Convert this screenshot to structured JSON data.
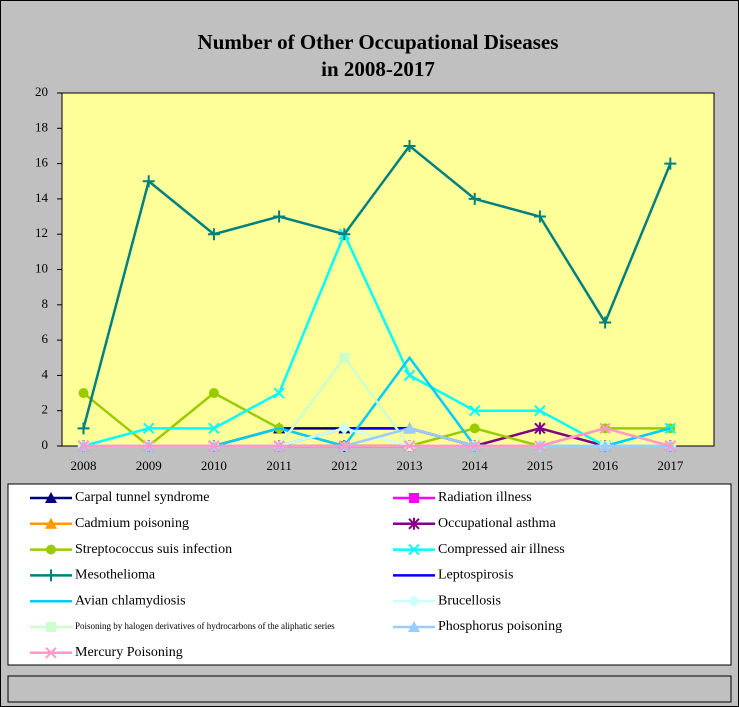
{
  "chart_data": {
    "type": "line",
    "title": [
      "Number of Other Occupational Diseases",
      "in 2008-2017"
    ],
    "categories": [
      "2008",
      "2009",
      "2010",
      "2011",
      "2012",
      "2013",
      "2014",
      "2015",
      "2016",
      "2017"
    ],
    "ylim": [
      0,
      20
    ],
    "yticks": [
      0,
      2,
      4,
      6,
      8,
      10,
      12,
      14,
      16,
      18,
      20
    ],
    "grid": false,
    "series": [
      {
        "name": "Carpal tunnel syndrome",
        "color": "#000080",
        "marker": "triangle",
        "values": [
          0,
          0,
          0,
          1,
          1,
          1,
          0,
          0,
          0,
          0
        ]
      },
      {
        "name": "Radiation illness",
        "color": "#FF00FF",
        "marker": "square",
        "values": [
          0,
          0,
          0,
          0,
          0,
          0,
          0,
          0,
          0,
          0
        ]
      },
      {
        "name": "Cadmium poisoning",
        "color": "#FF9900",
        "marker": "triangle",
        "values": [
          0,
          0,
          0,
          0,
          0,
          0,
          0,
          0,
          0,
          0
        ]
      },
      {
        "name": "Occupational asthma",
        "color": "#800080",
        "marker": "star",
        "values": [
          0,
          0,
          0,
          0,
          0,
          0,
          0,
          1,
          0,
          0
        ]
      },
      {
        "name": "Streptococcus suis infection",
        "color": "#99CC00",
        "marker": "circle",
        "values": [
          3,
          0,
          3,
          1,
          0,
          0,
          1,
          0,
          1,
          1
        ]
      },
      {
        "name": "Compressed air illness",
        "color": "#00FFFF",
        "marker": "x",
        "values": [
          0,
          1,
          1,
          3,
          12,
          4,
          2,
          2,
          0,
          1
        ]
      },
      {
        "name": "Mesothelioma",
        "color": "#008080",
        "marker": "plus",
        "values": [
          1,
          15,
          12,
          13,
          12,
          17,
          14,
          13,
          7,
          16
        ]
      },
      {
        "name": "Leptospirosis",
        "color": "#0000FF",
        "marker": "none",
        "values": [
          0,
          0,
          0,
          0,
          1,
          1,
          0,
          0,
          0,
          0
        ]
      },
      {
        "name": "Avian chlamydiosis",
        "color": "#00CCFF",
        "marker": "none",
        "values": [
          0,
          0,
          0,
          1,
          0,
          5,
          0,
          0,
          0,
          1
        ]
      },
      {
        "name": "Brucellosis",
        "color": "#CCFFFF",
        "marker": "diamond",
        "values": [
          0,
          0,
          0,
          0,
          1,
          0,
          0,
          0,
          0,
          0
        ]
      },
      {
        "name": "Poisoning by halogen derivatives of hydrocarbons of the aliphatic series",
        "color": "#CCFFCC",
        "marker": "square",
        "values": [
          0,
          0,
          0,
          0,
          5,
          0,
          0,
          0,
          0,
          0
        ]
      },
      {
        "name": "Phosphorus poisoning",
        "color": "#99CCFF",
        "marker": "triangle",
        "values": [
          0,
          0,
          0,
          0,
          0,
          1,
          0,
          0,
          0,
          0
        ]
      },
      {
        "name": "Mercury Poisoning",
        "color": "#FF99CC",
        "marker": "x",
        "values": [
          0,
          0,
          0,
          0,
          0,
          0,
          0,
          0,
          1,
          0
        ]
      }
    ]
  }
}
